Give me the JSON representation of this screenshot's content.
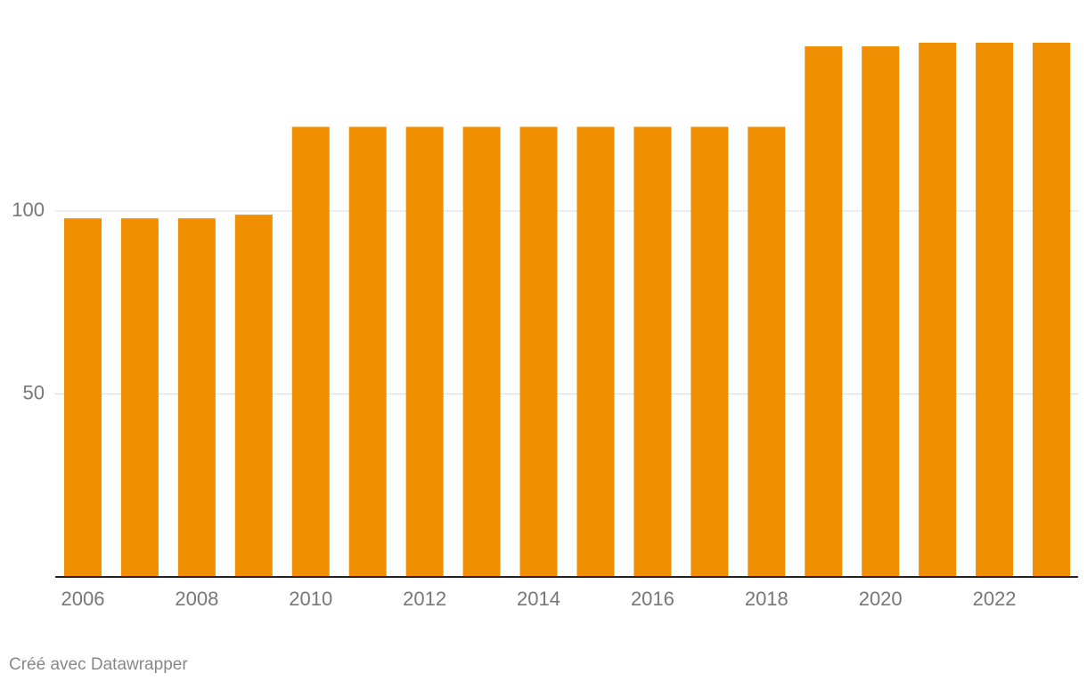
{
  "chart_data": {
    "type": "bar",
    "categories": [
      "2006",
      null,
      "2008",
      null,
      "2010",
      null,
      "2012",
      null,
      "2014",
      null,
      "2016",
      null,
      "2018",
      null,
      "2020",
      null,
      "2022",
      null
    ],
    "values": [
      98,
      98,
      98,
      99,
      123,
      123,
      123,
      123,
      123,
      123,
      123,
      123,
      123,
      145,
      145,
      146,
      146,
      146
    ],
    "color": "#f09000",
    "ylim": [
      0,
      150
    ],
    "yticks": [
      50,
      100
    ],
    "grid": true,
    "footer": "Créé avec Datawrapper"
  }
}
